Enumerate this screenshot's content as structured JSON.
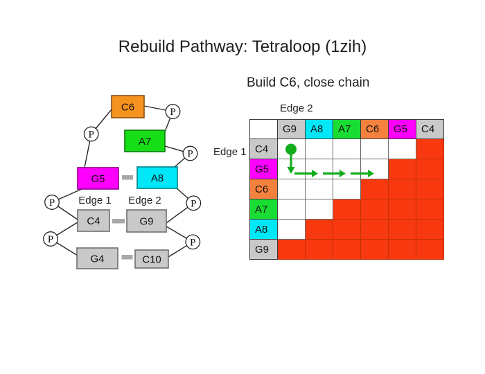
{
  "slide": {
    "title": "Rebuild Pathway: Tetraloop (1zih)"
  },
  "diagram": {
    "edge1_label": "Edge 1",
    "edge2_label": "Edge 2",
    "phosphate_label": "P",
    "nodes": [
      {
        "id": "C6",
        "label": "C6",
        "color": "#F6921E"
      },
      {
        "id": "A7",
        "label": "A7",
        "color": "#16DD16"
      },
      {
        "id": "G5",
        "label": "G5",
        "color": "#FF00FF"
      },
      {
        "id": "A8",
        "label": "A8",
        "color": "#00E8F8"
      },
      {
        "id": "C4",
        "label": "C4",
        "color": "#C9C9C9"
      },
      {
        "id": "G9",
        "label": "G9",
        "color": "#C9C9C9"
      },
      {
        "id": "G4",
        "label": "G4",
        "color": "#C9C9C9"
      },
      {
        "id": "C10",
        "label": "C10",
        "color": "#C9C9C9"
      }
    ],
    "base_pairs": [
      "G5-A8",
      "C4-G9",
      "G4-C10"
    ]
  },
  "matrix": {
    "subtitle": "Build C6, close chain",
    "edge1_label": "Edge 1",
    "edge2_label": "Edge 2",
    "col_headers": [
      {
        "label": "G9",
        "color": "#C9C9C9"
      },
      {
        "label": "A8",
        "color": "#00E8F8"
      },
      {
        "label": "A7",
        "color": "#1ADD33"
      },
      {
        "label": "C6",
        "color": "#F5813E"
      },
      {
        "label": "G5",
        "color": "#FF00FF"
      },
      {
        "label": "C4",
        "color": "#C9C9C9"
      }
    ],
    "rows": [
      {
        "label": "C4",
        "color": "#C9C9C9",
        "cells": [
          0,
          0,
          0,
          0,
          0,
          1
        ]
      },
      {
        "label": "G5",
        "color": "#FF00FF",
        "cells": [
          0,
          0,
          0,
          0,
          1,
          1
        ]
      },
      {
        "label": "C6",
        "color": "#F5813E",
        "cells": [
          0,
          0,
          0,
          1,
          1,
          1
        ]
      },
      {
        "label": "A7",
        "color": "#1ADD33",
        "cells": [
          0,
          0,
          1,
          1,
          1,
          1
        ]
      },
      {
        "label": "A8",
        "color": "#00E8F8",
        "cells": [
          0,
          1,
          1,
          1,
          1,
          1
        ]
      },
      {
        "label": "G9",
        "color": "#C9C9C9",
        "cells": [
          1,
          1,
          1,
          1,
          1,
          1
        ]
      }
    ],
    "filled_color": "#F8380E",
    "annotation": {
      "color": "#12AC1C",
      "start": {
        "row": "C4",
        "col": "G9"
      },
      "steps": [
        "down",
        "right",
        "right",
        "right"
      ]
    }
  }
}
